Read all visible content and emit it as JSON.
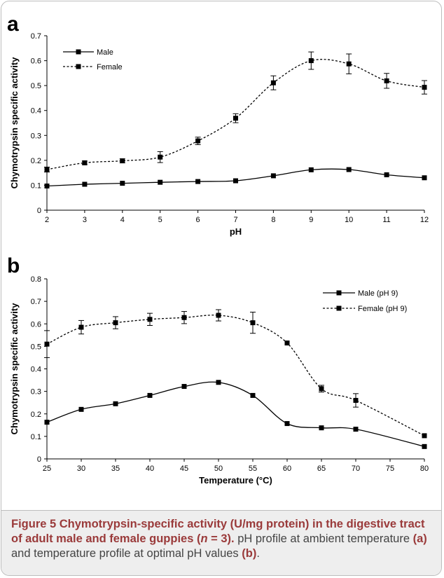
{
  "chart_data": [
    {
      "panel_label": "a",
      "type": "line",
      "xlabel": "pH",
      "ylabel": "Chymotrypsin specific activity",
      "x": [
        2,
        3,
        4,
        5,
        6,
        7,
        8,
        9,
        10,
        11,
        12
      ],
      "xlim": [
        2,
        12
      ],
      "ylim": [
        0,
        0.7
      ],
      "xticks": [
        "2",
        "3",
        "4",
        "5",
        "6",
        "7",
        "8",
        "9",
        "10",
        "11",
        "12"
      ],
      "yticks": [
        "0",
        "0.1",
        "0.2",
        "0.3",
        "0.4",
        "0.5",
        "0.6",
        "0.7"
      ],
      "legend_position": "top-left",
      "grid": false,
      "series": [
        {
          "name": "Male",
          "style": "solid",
          "values": [
            0.097,
            0.104,
            0.108,
            0.112,
            0.115,
            0.118,
            0.138,
            0.162,
            0.163,
            0.142,
            0.13
          ],
          "errors": [
            0,
            0,
            0,
            0,
            0,
            0,
            0,
            0,
            0,
            0,
            0
          ]
        },
        {
          "name": "Female",
          "style": "dotted",
          "values": [
            0.163,
            0.19,
            0.198,
            0.213,
            0.278,
            0.369,
            0.511,
            0.6,
            0.587,
            0.519,
            0.493
          ],
          "errors": [
            0.01,
            0.007,
            0.008,
            0.022,
            0.015,
            0.018,
            0.028,
            0.035,
            0.04,
            0.03,
            0.027
          ]
        }
      ]
    },
    {
      "panel_label": "b",
      "type": "line",
      "xlabel": "Temperature (°C)",
      "ylabel": "Chymotrypsin specific activity",
      "x": [
        25,
        30,
        35,
        40,
        45,
        50,
        55,
        60,
        65,
        70,
        80
      ],
      "xlim": [
        25,
        80
      ],
      "ylim": [
        0,
        0.8
      ],
      "xticks": [
        "25",
        "30",
        "35",
        "40",
        "45",
        "50",
        "55",
        "60",
        "65",
        "70",
        "75",
        "80"
      ],
      "yticks": [
        "0",
        "0.1",
        "0.2",
        "0.3",
        "0.4",
        "0.5",
        "0.6",
        "0.7",
        "0.8"
      ],
      "legend_position": "top-right",
      "grid": false,
      "series": [
        {
          "name": "Male (pH 9)",
          "style": "solid",
          "values": [
            0.163,
            0.22,
            0.245,
            0.282,
            0.322,
            0.34,
            0.282,
            0.157,
            0.138,
            0.132,
            0.055
          ],
          "errors": [
            0,
            0,
            0,
            0,
            0,
            0,
            0,
            0,
            0,
            0,
            0
          ]
        },
        {
          "name": "Female (pH 9)",
          "style": "dotted",
          "values": [
            0.51,
            0.585,
            0.605,
            0.62,
            0.628,
            0.638,
            0.605,
            0.515,
            0.312,
            0.26,
            0.103
          ],
          "errors": [
            0.06,
            0.03,
            0.027,
            0.027,
            0.027,
            0.025,
            0.047,
            0,
            0.015,
            0.03,
            0
          ]
        }
      ]
    }
  ],
  "caption": {
    "title_pre": "Figure 5 Chymotrypsin-specific activity (U/mg protein) in the digestive tract of adult male and female guppies (",
    "title_n": "n",
    "title_post": " = 3).",
    "body_1": " pH profile at ambient temperature ",
    "ref_a": "(a)",
    "body_2": " and temperature profile at optimal pH values ",
    "ref_b": "(b)",
    "body_3": "."
  }
}
